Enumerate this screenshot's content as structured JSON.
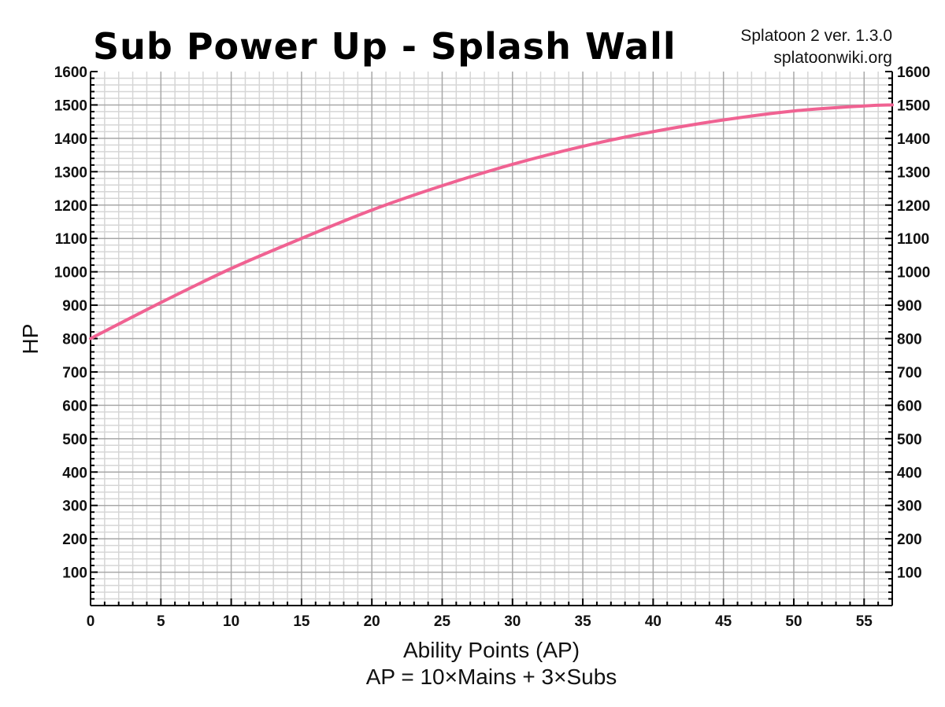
{
  "header": {
    "title": "Sub Power Up - Splash Wall",
    "source_line1": "Splatoon 2 ver. 1.3.0",
    "source_line2": "splatoonwiki.org"
  },
  "axes": {
    "ylabel": "HP",
    "xlabel": "Ability Points (AP)",
    "xlabel_sub": "AP = 10×Mains + 3×Subs"
  },
  "colors": {
    "line": "#f06292",
    "major_grid": "#a8a8a8",
    "minor_grid": "#d6d6d6",
    "axis": "#000000"
  },
  "chart_data": {
    "type": "line",
    "title": "Sub Power Up - Splash Wall",
    "subtitle": "Splatoon 2 ver. 1.3.0 / splatoonwiki.org",
    "xlabel": "Ability Points (AP)",
    "xlabel_note": "AP = 10×Mains + 3×Subs",
    "ylabel": "HP",
    "xlim": [
      0,
      57
    ],
    "ylim": [
      0,
      1600
    ],
    "x_ticks": [
      0,
      5,
      10,
      15,
      20,
      25,
      30,
      35,
      40,
      45,
      50,
      55
    ],
    "y_ticks": [
      100,
      200,
      300,
      400,
      500,
      600,
      700,
      800,
      900,
      1000,
      1100,
      1200,
      1300,
      1400,
      1500,
      1600
    ],
    "grid": true,
    "legend": null,
    "series": [
      {
        "name": "Splash Wall HP",
        "color": "#f06292",
        "x": [
          0,
          5,
          10,
          15,
          20,
          25,
          30,
          35,
          40,
          45,
          50,
          55,
          57
        ],
        "values": [
          800,
          908,
          1010,
          1100,
          1185,
          1258,
          1322,
          1376,
          1420,
          1455,
          1482,
          1497,
          1500
        ]
      }
    ]
  }
}
